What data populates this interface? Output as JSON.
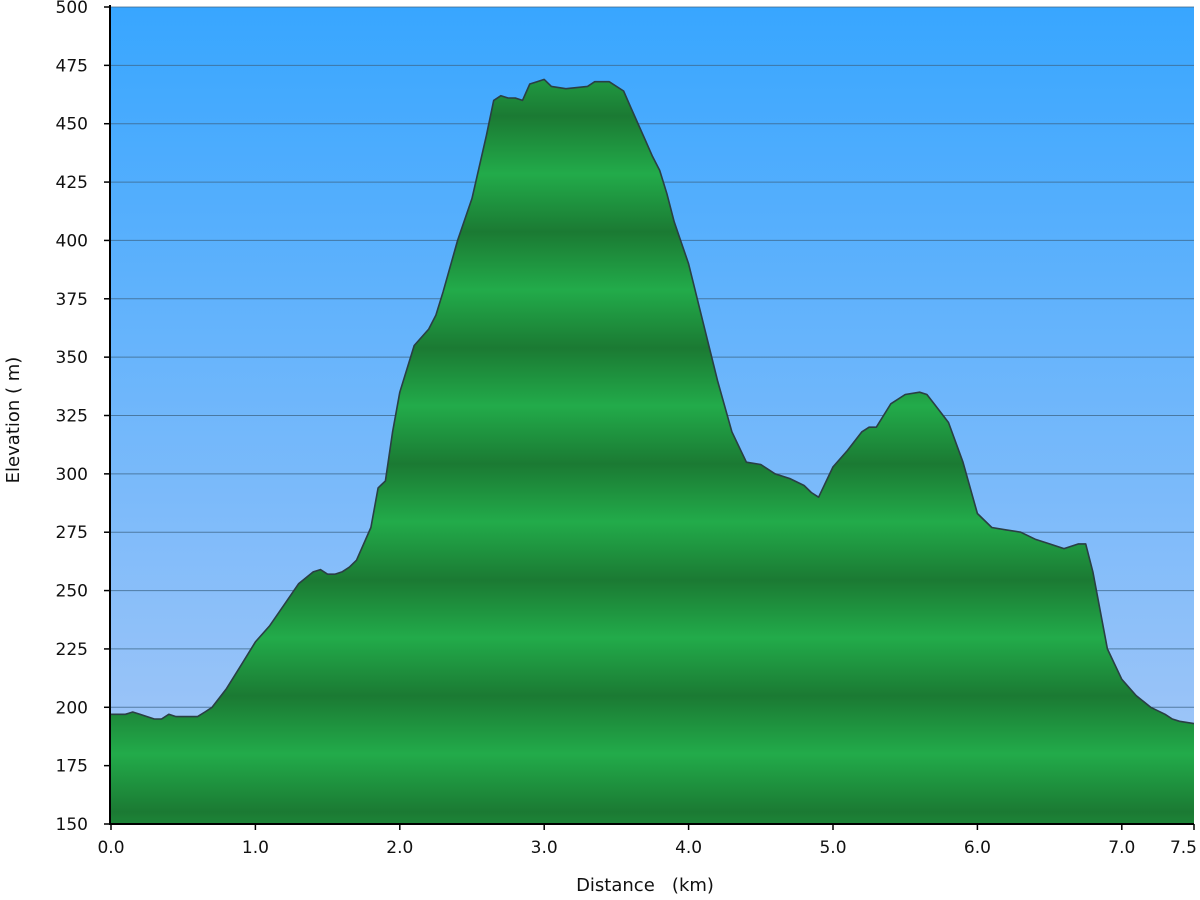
{
  "chart_data": {
    "type": "area",
    "title": "",
    "xlabel": "Distance   (km)",
    "ylabel": "Elevation ( m)",
    "xlim": [
      0,
      7.5
    ],
    "ylim": [
      150,
      500
    ],
    "grid": true,
    "legend": "none",
    "colors": {
      "sky_top": "#38a6ff",
      "sky_bottom": "#a9c8f7",
      "fill_light": "#22ab4a",
      "fill_dark": "#1b7a33",
      "outline": "#2a3f44",
      "grid": "#3c6486",
      "axis": "#000000"
    },
    "x_ticks": [
      0.0,
      1.0,
      2.0,
      3.0,
      4.0,
      5.0,
      6.0,
      7.0,
      7.5
    ],
    "x_tick_labels": [
      "0.0",
      "1.0",
      "2.0",
      "3.0",
      "4.0",
      "5.0",
      "6.0",
      "7.0",
      "7.5"
    ],
    "y_ticks": [
      150,
      175,
      200,
      225,
      250,
      275,
      300,
      325,
      350,
      375,
      400,
      425,
      450,
      475,
      500
    ],
    "y_tick_labels": [
      "150",
      "175",
      "200",
      "225",
      "250",
      "275",
      "300",
      "325",
      "350",
      "375",
      "400",
      "425",
      "450",
      "475",
      "500"
    ],
    "x": [
      0.0,
      0.1,
      0.15,
      0.2,
      0.3,
      0.35,
      0.4,
      0.45,
      0.5,
      0.6,
      0.65,
      0.7,
      0.8,
      0.9,
      1.0,
      1.1,
      1.2,
      1.3,
      1.4,
      1.45,
      1.5,
      1.55,
      1.6,
      1.65,
      1.7,
      1.8,
      1.85,
      1.9,
      1.95,
      2.0,
      2.1,
      2.2,
      2.25,
      2.3,
      2.4,
      2.5,
      2.6,
      2.65,
      2.7,
      2.75,
      2.8,
      2.85,
      2.9,
      2.95,
      3.0,
      3.05,
      3.15,
      3.3,
      3.35,
      3.45,
      3.55,
      3.6,
      3.7,
      3.75,
      3.8,
      3.85,
      3.9,
      4.0,
      4.1,
      4.2,
      4.3,
      4.4,
      4.5,
      4.6,
      4.7,
      4.8,
      4.85,
      4.9,
      5.0,
      5.1,
      5.2,
      5.25,
      5.3,
      5.4,
      5.5,
      5.6,
      5.65,
      5.7,
      5.8,
      5.9,
      6.0,
      6.1,
      6.2,
      6.3,
      6.4,
      6.5,
      6.6,
      6.7,
      6.75,
      6.8,
      6.9,
      7.0,
      7.1,
      7.2,
      7.3,
      7.35,
      7.4,
      7.5
    ],
    "values": [
      197,
      197,
      198,
      197,
      195,
      195,
      197,
      196,
      196,
      196,
      198,
      200,
      208,
      218,
      228,
      235,
      244,
      253,
      258,
      259,
      257,
      257,
      258,
      260,
      263,
      277,
      294,
      297,
      318,
      335,
      355,
      362,
      368,
      378,
      400,
      418,
      445,
      460,
      462,
      461,
      461,
      460,
      467,
      468,
      469,
      466,
      465,
      466,
      468,
      468,
      464,
      457,
      443,
      436,
      430,
      420,
      408,
      390,
      365,
      340,
      318,
      305,
      304,
      300,
      298,
      295,
      292,
      290,
      303,
      310,
      318,
      320,
      320,
      330,
      334,
      335,
      334,
      330,
      322,
      305,
      283,
      277,
      276,
      275,
      272,
      270,
      268,
      270,
      270,
      258,
      225,
      212,
      205,
      200,
      197,
      195,
      194,
      193
    ]
  }
}
